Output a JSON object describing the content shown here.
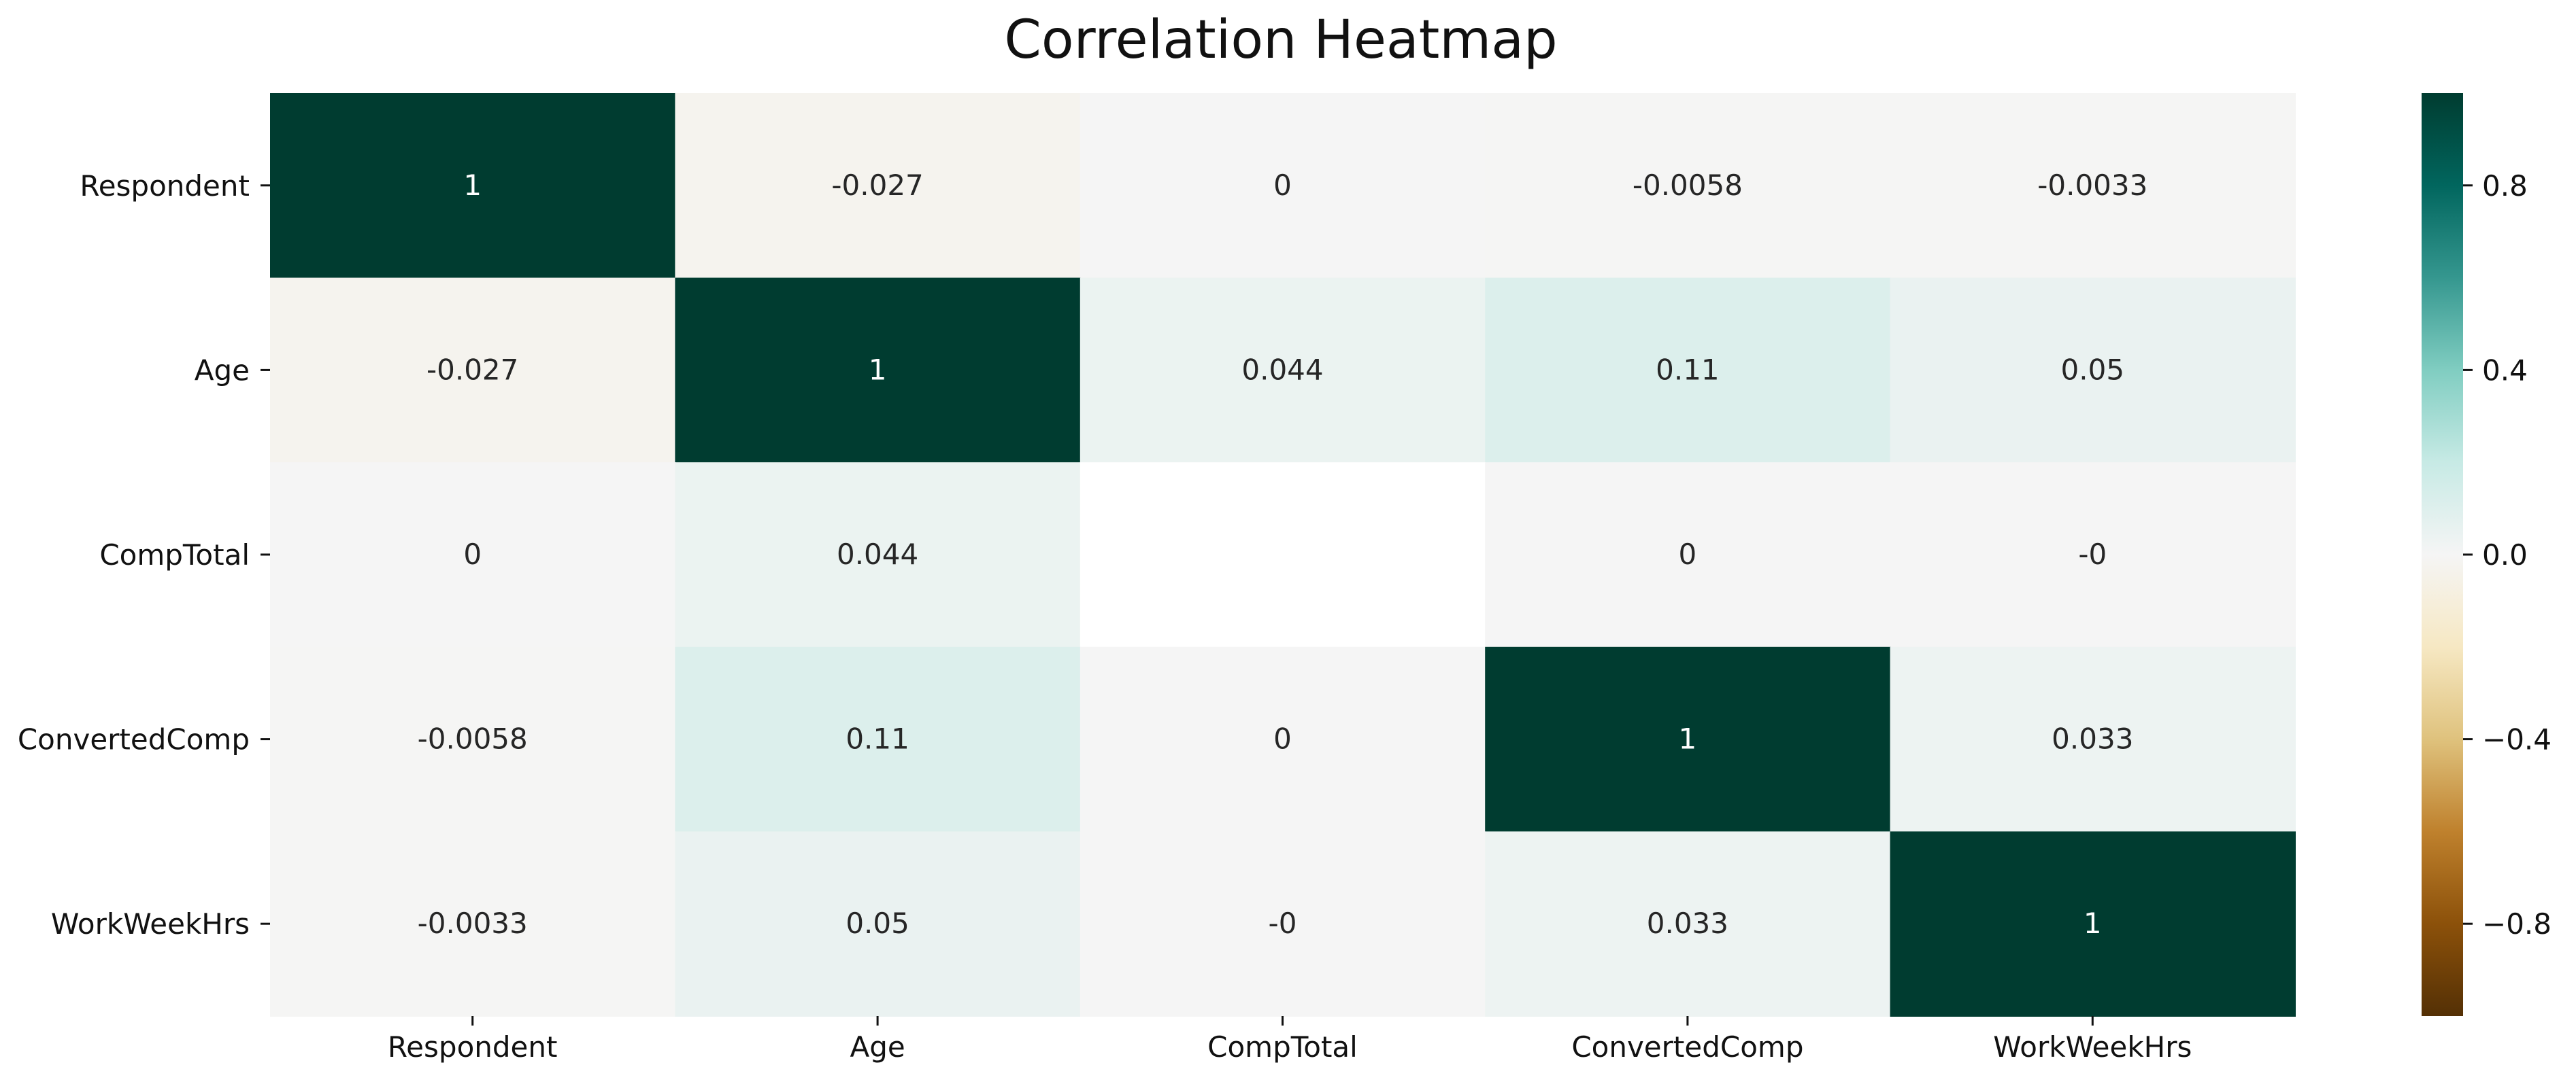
{
  "chart_data": {
    "type": "heatmap",
    "title": "Correlation Heatmap",
    "x_labels": [
      "Respondent",
      "Age",
      "CompTotal",
      "ConvertedComp",
      "WorkWeekHrs"
    ],
    "y_labels": [
      "Respondent",
      "Age",
      "CompTotal",
      "ConvertedComp",
      "WorkWeekHrs"
    ],
    "values": [
      [
        1,
        -0.027,
        0,
        -0.0058,
        -0.0033
      ],
      [
        -0.027,
        1,
        0.044,
        0.11,
        0.05
      ],
      [
        0,
        0.044,
        null,
        0,
        0
      ],
      [
        -0.0058,
        0.11,
        0,
        1,
        0.033
      ],
      [
        -0.0033,
        0.05,
        0,
        0.033,
        1
      ]
    ],
    "annotations": [
      [
        "1",
        "-0.027",
        "0",
        "-0.0058",
        "-0.0033"
      ],
      [
        "-0.027",
        "1",
        "0.044",
        "0.11",
        "0.05"
      ],
      [
        "0",
        "0.044",
        "",
        "0",
        "-0"
      ],
      [
        "-0.0058",
        "0.11",
        "0",
        "1",
        "0.033"
      ],
      [
        "-0.0033",
        "0.05",
        "-0",
        "0.033",
        "1"
      ]
    ],
    "colorbar": {
      "range": [
        -1,
        1
      ],
      "ticks": [
        0.8,
        0.4,
        0.0,
        -0.4,
        -0.8
      ],
      "tick_labels": [
        "0.8",
        "0.4",
        "0.0",
        "−0.4",
        "−0.8"
      ],
      "colormap": "BrBG",
      "colors": [
        "#543005",
        "#8c510a",
        "#bf812d",
        "#dfc27d",
        "#f6e8c3",
        "#f5f5f5",
        "#c7eae5",
        "#80cdc1",
        "#35978f",
        "#01665e",
        "#003c30"
      ]
    }
  }
}
